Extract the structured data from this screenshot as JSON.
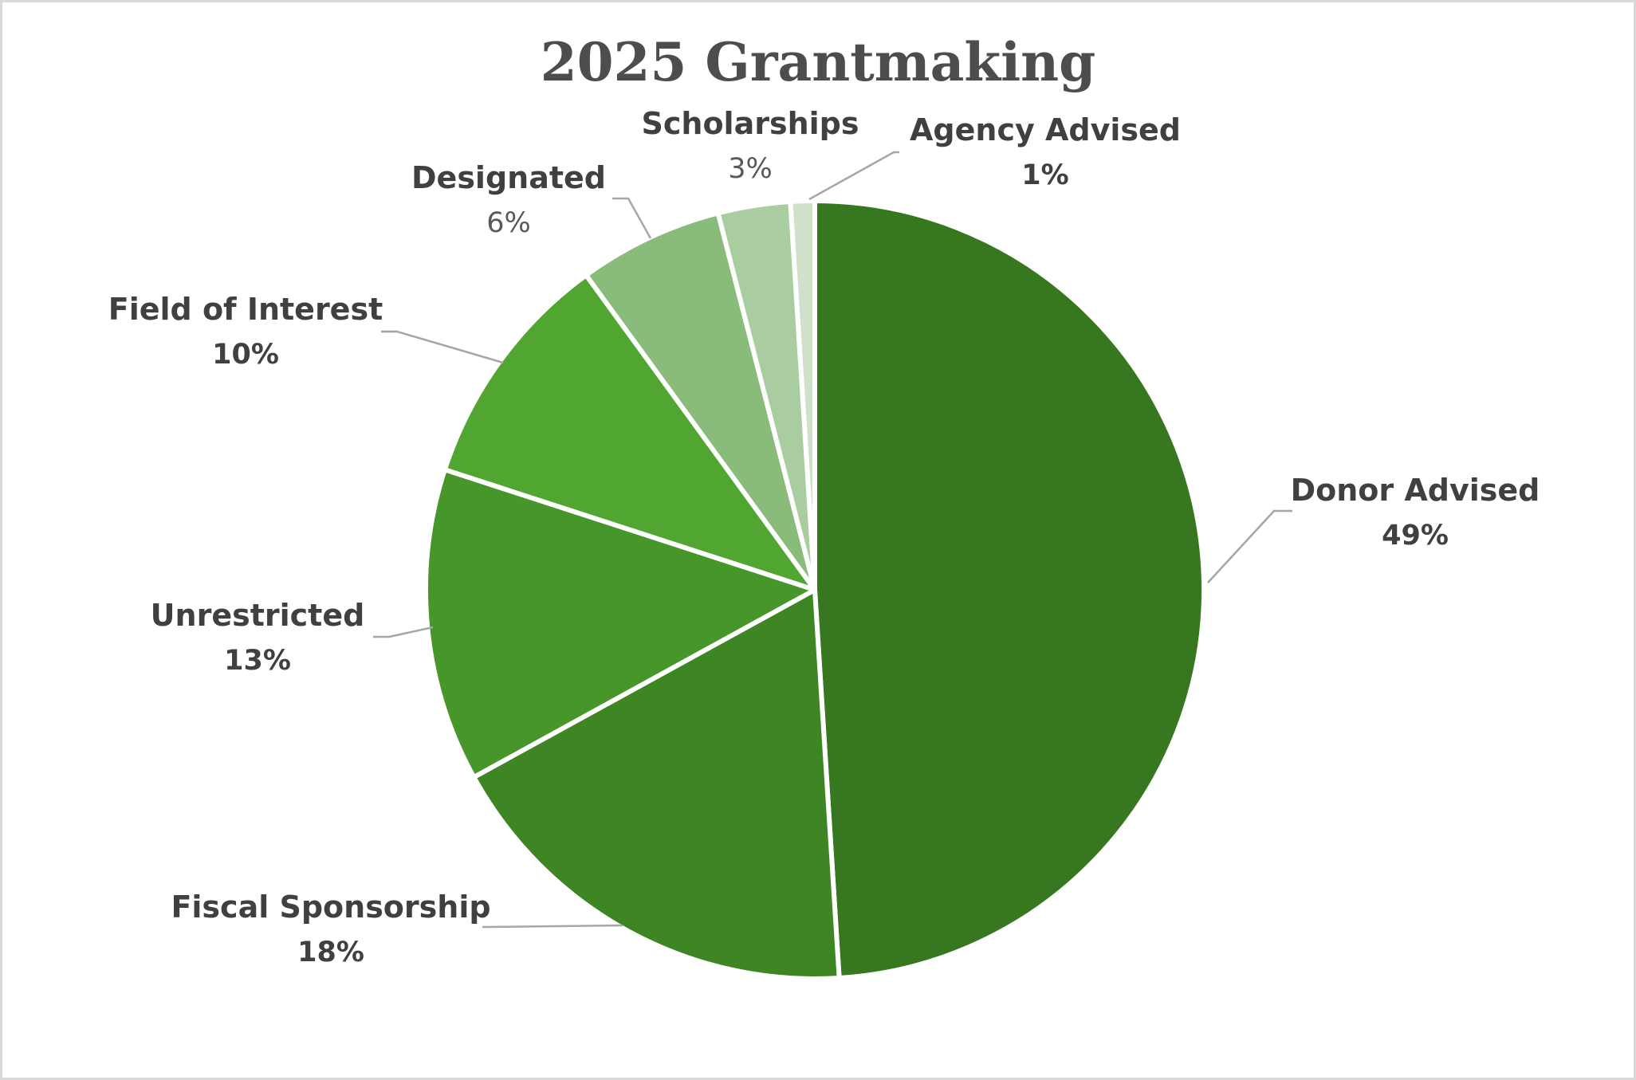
{
  "chart_data": {
    "type": "pie",
    "title": "2025 Grantmaking",
    "slices": [
      {
        "label": "Donor Advised",
        "value": 49,
        "pct_label": "49%",
        "color": "#37771f",
        "label_weight": "bold"
      },
      {
        "label": "Fiscal Sponsorship",
        "value": 18,
        "pct_label": "18%",
        "color": "#3e8623",
        "label_weight": "bold"
      },
      {
        "label": "Unrestricted",
        "value": 13,
        "pct_label": "13%",
        "color": "#47962a",
        "label_weight": "bold"
      },
      {
        "label": "Field of Interest",
        "value": 10,
        "pct_label": "10%",
        "color": "#50a630",
        "label_weight": "bold"
      },
      {
        "label": "Designated",
        "value": 6,
        "pct_label": "6%",
        "color": "#89bb7b",
        "label_weight": "mixed"
      },
      {
        "label": "Scholarships",
        "value": 3,
        "pct_label": "3%",
        "color": "#aacca1",
        "label_weight": "mixed"
      },
      {
        "label": "Agency Advised",
        "value": 1,
        "pct_label": "1%",
        "color": "#cfe0cb",
        "label_weight": "bold"
      }
    ],
    "start_angle": "12 o'clock",
    "direction": "clockwise",
    "legend": "none",
    "data_labels": "outside with leader lines"
  }
}
